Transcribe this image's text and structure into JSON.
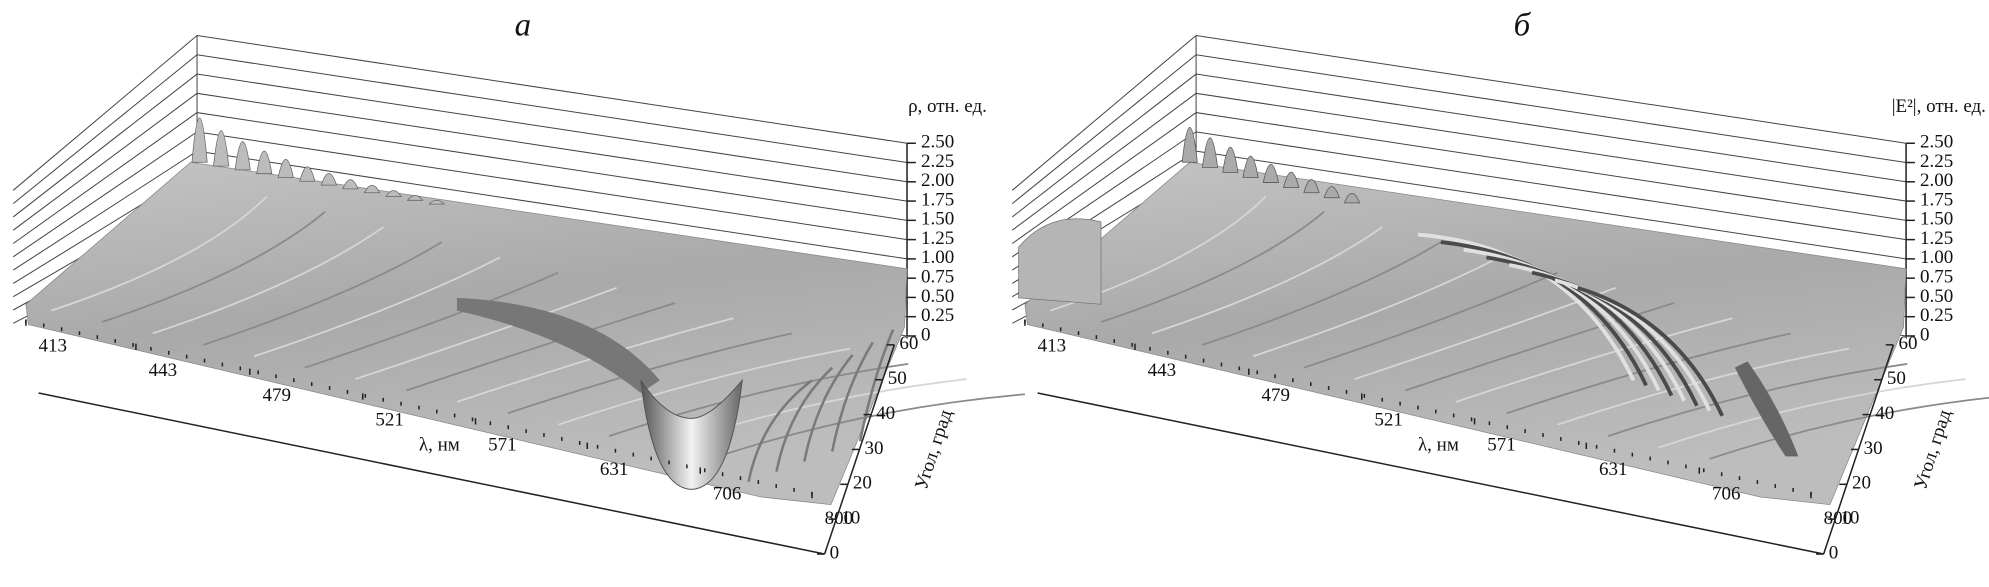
{
  "chart_data": [
    {
      "type": "surface3d",
      "title": "а",
      "z_label": "ρ, отн. ед.",
      "x_label": "λ, нм",
      "y_label": "Угол, град",
      "x_scale": "reciprocal",
      "xlim": [
        413,
        800
      ],
      "xticks": [
        413,
        443,
        479,
        521,
        571,
        631,
        706,
        800
      ],
      "ylim": [
        0,
        60
      ],
      "yticks": [
        0,
        10,
        20,
        30,
        40,
        50,
        60
      ],
      "zlim": [
        0,
        2.5
      ],
      "zticks": [
        0,
        0.25,
        {
          "value": 0.5,
          "label": "0.50"
        },
        0.75,
        {
          "value": 1,
          "label": "1.00"
        },
        1.25,
        {
          "value": 1.5,
          "label": "1.50"
        },
        1.75,
        {
          "value": 2,
          "label": "2.00"
        },
        2.25,
        {
          "value": 2.5,
          "label": "2.50"
        }
      ]
    },
    {
      "type": "surface3d",
      "title": "б",
      "z_label": "|E²|, отн. ед.",
      "x_label": "λ, нм",
      "y_label": "Угол, град",
      "x_scale": "reciprocal",
      "xlim": [
        413,
        800
      ],
      "xticks": [
        413,
        443,
        479,
        521,
        571,
        631,
        706,
        800
      ],
      "ylim": [
        0,
        60
      ],
      "yticks": [
        0,
        10,
        20,
        30,
        40,
        50,
        60
      ],
      "zlim": [
        0,
        2.5
      ],
      "zticks": [
        0,
        0.25,
        {
          "value": 0.5,
          "label": "0.50"
        },
        0.75,
        {
          "value": 1,
          "label": "1.00"
        },
        1.25,
        {
          "value": 1.5,
          "label": "1.50"
        },
        1.75,
        {
          "value": 2,
          "label": "2.00"
        },
        2.25,
        {
          "value": 2.5,
          "label": "2.50"
        }
      ]
    }
  ]
}
